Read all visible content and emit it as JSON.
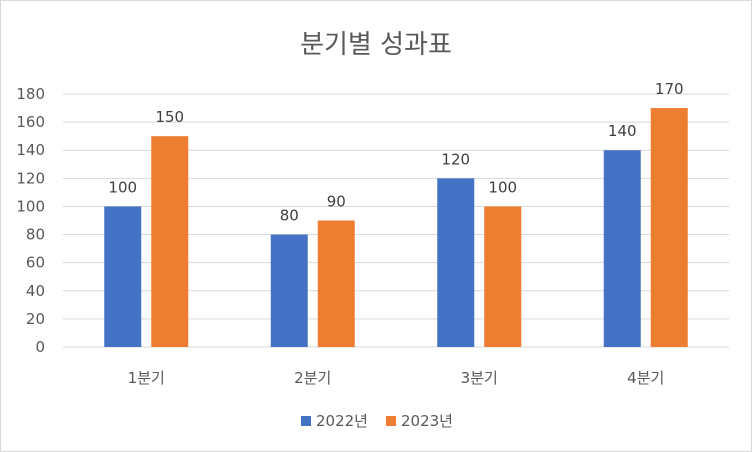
{
  "chart_data": {
    "type": "bar",
    "title": "분기별 성과표",
    "xlabel": "",
    "ylabel": "",
    "categories": [
      "1분기",
      "2분기",
      "3분기",
      "4분기"
    ],
    "series": [
      {
        "name": "2022년",
        "values": [
          100,
          80,
          120,
          140
        ],
        "color": "#4472C4"
      },
      {
        "name": "2023년",
        "values": [
          150,
          90,
          100,
          170
        ],
        "color": "#ED7D31"
      }
    ],
    "ylim": [
      0,
      180
    ],
    "yticks": [
      "0",
      "20",
      "40",
      "60",
      "80",
      "100",
      "120",
      "140",
      "160",
      "180"
    ],
    "grid": true,
    "data_labels": true,
    "legend_position": "bottom",
    "axis_text_color": "#595959",
    "gridline_color": "#d9d9d9"
  }
}
